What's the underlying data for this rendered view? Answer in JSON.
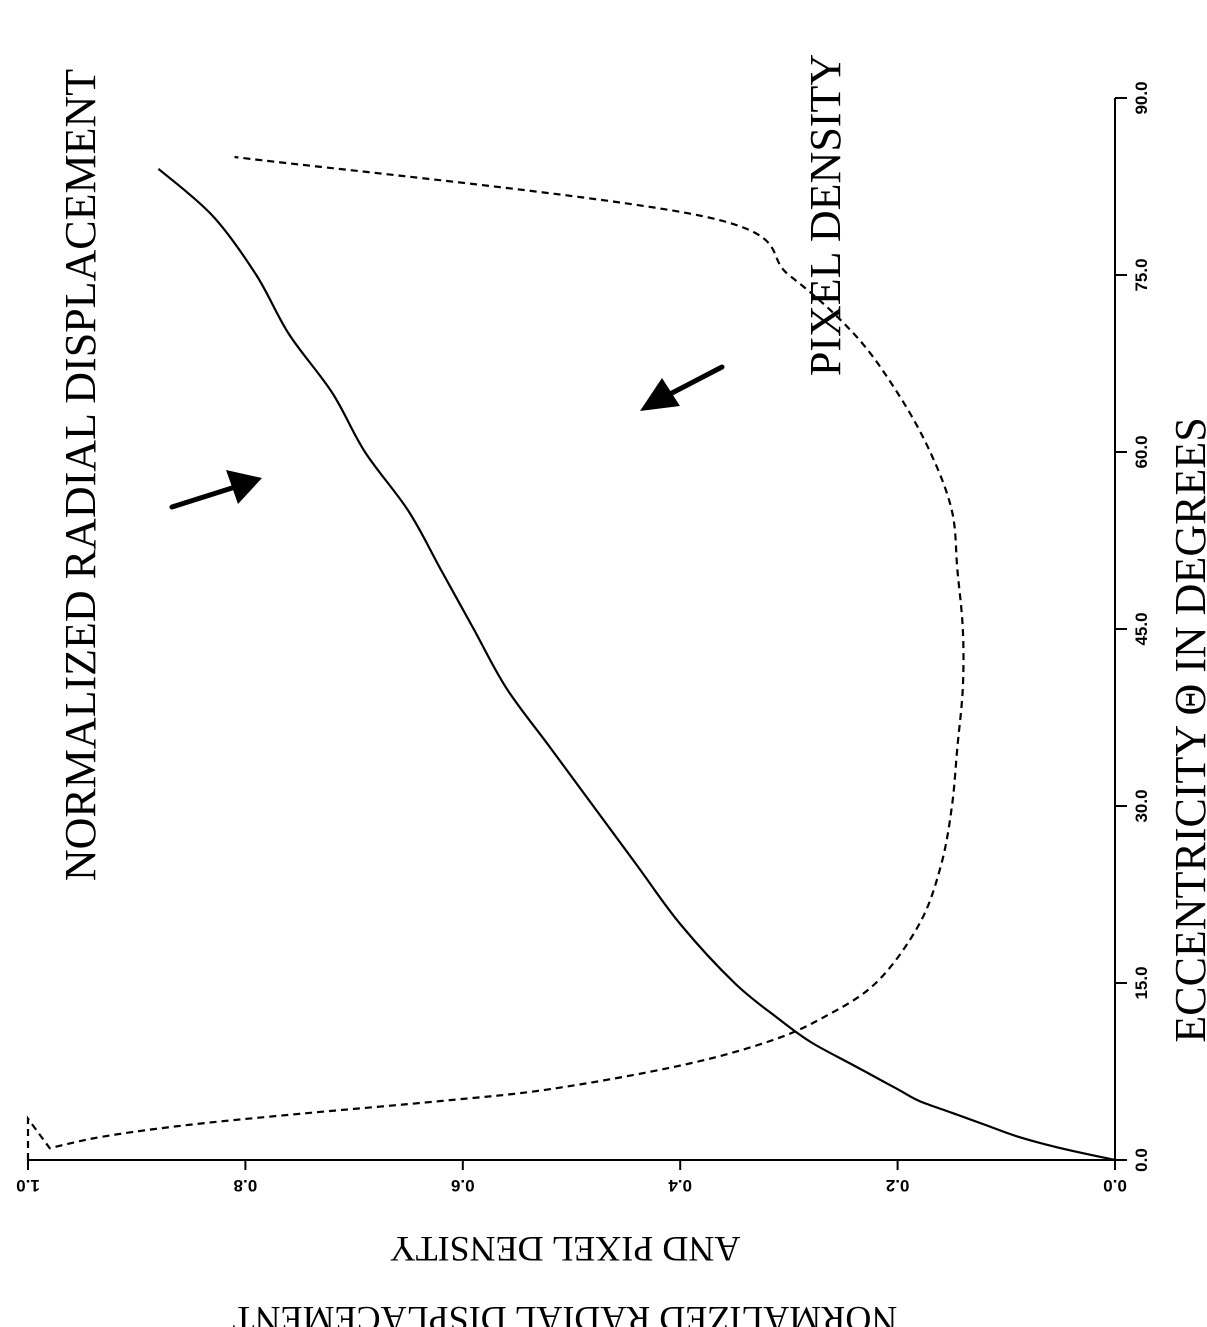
{
  "chart_data": {
    "type": "line",
    "title": "NORMALIZED RADIAL DISPLACEMENT",
    "xlabel": "ECCENTRICITY Θ IN DEGREES",
    "ylabel_line1": "NORMALIZED RADIAL DISPLACEMENT",
    "ylabel_line2": "AND PIXEL DENSITY",
    "xlim": [
      0,
      90
    ],
    "ylim": [
      0,
      1.0
    ],
    "x_ticks": [
      0,
      15,
      30,
      45,
      60,
      75,
      90
    ],
    "x_tick_labels": [
      "0.0",
      "15.0",
      "30.0",
      "45.0",
      "60.0",
      "75.0",
      "90.0"
    ],
    "y_ticks": [
      0,
      0.2,
      0.4,
      0.6,
      0.8,
      1.0
    ],
    "y_tick_labels": [
      "0.0",
      "0.2",
      "0.4",
      "0.6",
      "0.8",
      "1.0"
    ],
    "grid": false,
    "orientation": "rotated 90 degrees (eccentricity axis runs vertically on the right)",
    "series": [
      {
        "style": "solid",
        "annotation": "NORMALIZED RADIAL DISPLACEMENT",
        "x": [
          0,
          1,
          2,
          3,
          4,
          5,
          6,
          8,
          10,
          12,
          15,
          20,
          25,
          30,
          35,
          40,
          45,
          50,
          55,
          60,
          65,
          70,
          75,
          80,
          84
        ],
        "y": [
          0,
          0.05,
          0.09,
          0.12,
          0.15,
          0.18,
          0.2,
          0.24,
          0.28,
          0.31,
          0.35,
          0.4,
          0.44,
          0.48,
          0.52,
          0.56,
          0.59,
          0.62,
          0.65,
          0.69,
          0.72,
          0.76,
          0.79,
          0.83,
          0.88
        ]
      },
      {
        "style": "dashed",
        "annotation": "PIXEL DENSITY",
        "x": [
          0,
          1,
          2,
          3,
          4,
          5,
          6,
          8,
          10,
          12,
          15,
          20,
          25,
          30,
          35,
          40,
          45,
          50,
          55,
          60,
          65,
          70,
          75,
          80,
          85
        ],
        "y": [
          1.0,
          0.98,
          0.93,
          0.85,
          0.74,
          0.62,
          0.52,
          0.4,
          0.32,
          0.27,
          0.22,
          0.18,
          0.16,
          0.15,
          0.145,
          0.14,
          0.14,
          0.145,
          0.15,
          0.17,
          0.2,
          0.24,
          0.3,
          0.38,
          0.81
        ]
      }
    ]
  }
}
